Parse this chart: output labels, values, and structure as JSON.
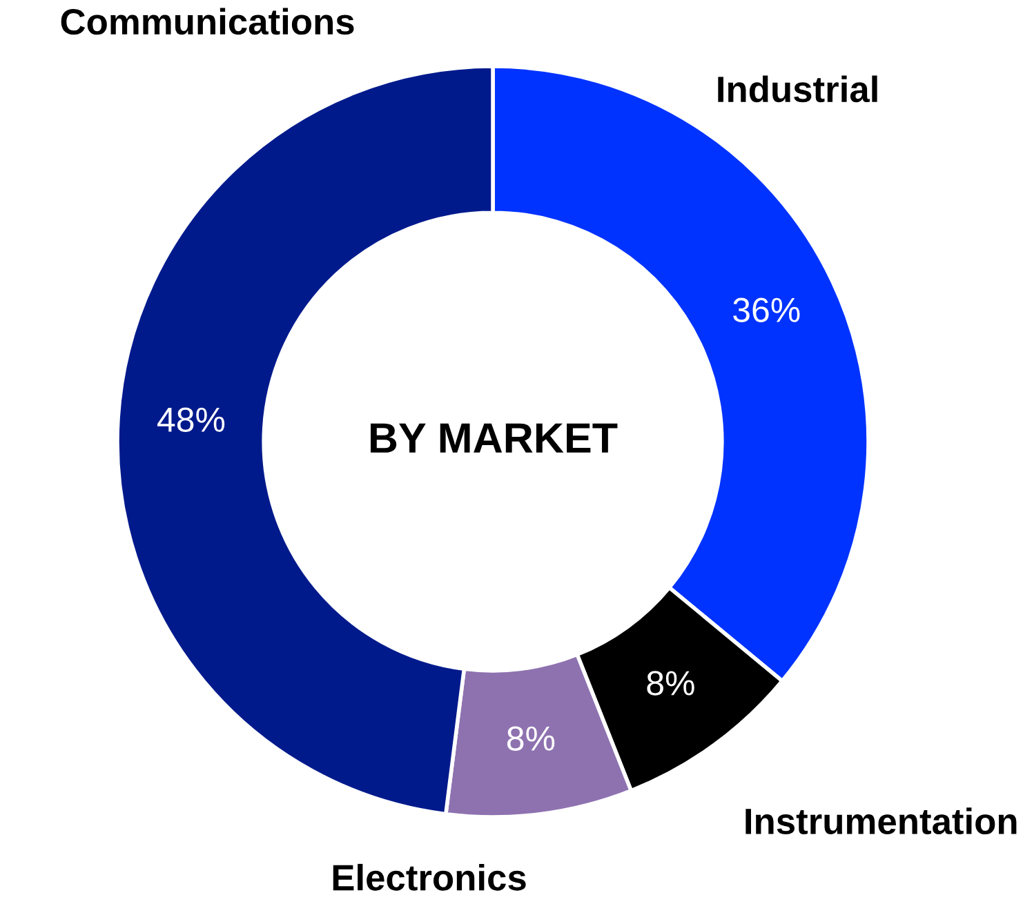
{
  "chart_data": {
    "type": "donut",
    "title": "BY MARKET",
    "categories": [
      "Industrial",
      "Instrumentation",
      "Electronics",
      "Communications"
    ],
    "values": [
      36,
      8,
      8,
      48
    ],
    "value_labels": [
      "36%",
      "8%",
      "8%",
      "48%"
    ],
    "colors": [
      "#0033ff",
      "#000000",
      "#8e72b0",
      "#001a8c"
    ],
    "legend": false
  }
}
